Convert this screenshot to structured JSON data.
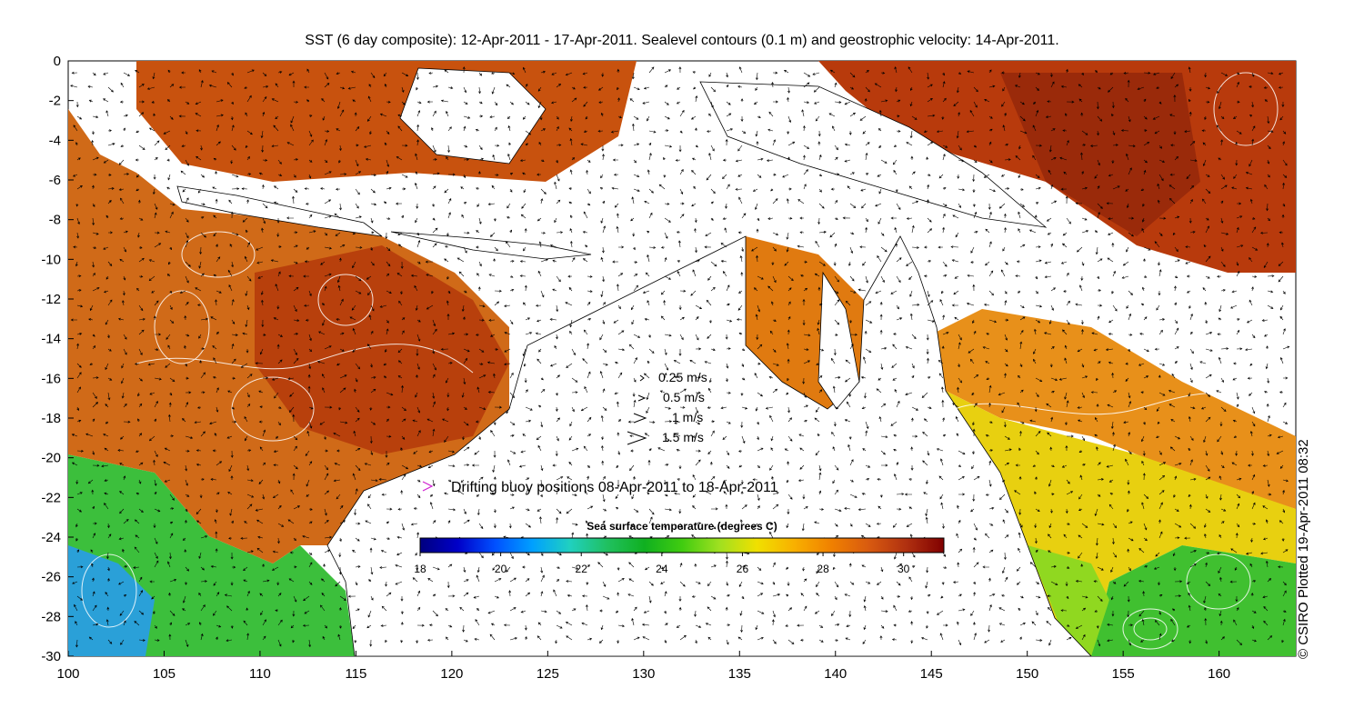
{
  "title": "SST (6 day composite): 12-Apr-2011 - 17-Apr-2011. Sealevel contours (0.1 m) and geostrophic velocity: 14-Apr-2011.",
  "credit": "© CSIRO Plotted 19-Apr-2011 08:32",
  "axes": {
    "x_ticks": [
      "100",
      "105",
      "110",
      "115",
      "120",
      "125",
      "130",
      "135",
      "140",
      "145",
      "150",
      "155",
      "160"
    ],
    "y_ticks": [
      "0",
      "-2",
      "-4",
      "-6",
      "-8",
      "-10",
      "-12",
      "-14",
      "-16",
      "-18",
      "-20",
      "-22",
      "-24",
      "-26",
      "-28",
      "-30"
    ],
    "lon_range": [
      100,
      164
    ],
    "lat_range": [
      -30,
      0
    ]
  },
  "velocity_legend": [
    {
      "label": "0.25 m/s"
    },
    {
      "label": "0.5 m/s"
    },
    {
      "label": "1 m/s"
    },
    {
      "label": "1.5 m/s"
    }
  ],
  "buoy_legend": {
    "label": "Drifting buoy positions 08-Apr-2011 to 18-Apr-2011",
    "marker_color": "#d020d0"
  },
  "colorbar": {
    "title": "Sea surface temperature (degrees C)",
    "ticks": [
      "18",
      "20",
      "22",
      "24",
      "26",
      "28",
      "30"
    ],
    "min": 18,
    "max": 31,
    "colors": [
      "#00007f",
      "#0000c8",
      "#0050ff",
      "#00a0ff",
      "#20d0c0",
      "#20c060",
      "#10b020",
      "#40cc10",
      "#a0e020",
      "#f0e000",
      "#f8b000",
      "#f08000",
      "#d85a10",
      "#b03010",
      "#800000"
    ]
  }
}
